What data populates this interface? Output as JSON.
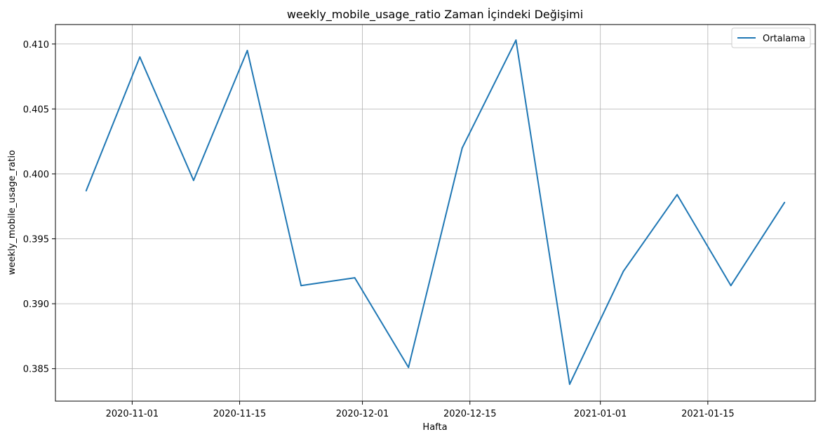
{
  "chart_data": {
    "type": "line",
    "title": "weekly_mobile_usage_ratio Zaman İçindeki Değişimi",
    "xlabel": "Hafta",
    "ylabel": "weekly_mobile_usage_ratio",
    "x_axis": {
      "type": "date",
      "range": [
        "2020-10-22",
        "2021-01-29"
      ],
      "ticks": [
        "2020-11-01",
        "2020-11-15",
        "2020-12-01",
        "2020-12-15",
        "2021-01-01",
        "2021-01-15"
      ]
    },
    "y_axis": {
      "range": [
        0.3825,
        0.4115
      ],
      "ticks": [
        0.385,
        0.39,
        0.395,
        0.4,
        0.405,
        0.41
      ],
      "tick_labels": [
        "0.385",
        "0.390",
        "0.395",
        "0.400",
        "0.405",
        "0.410"
      ]
    },
    "grid": true,
    "legend_position": "top-right",
    "series": [
      {
        "name": "Ortalama",
        "color": "#1f77b4",
        "x": [
          "2020-10-26",
          "2020-11-02",
          "2020-11-09",
          "2020-11-16",
          "2020-11-23",
          "2020-11-30",
          "2020-12-07",
          "2020-12-14",
          "2020-12-21",
          "2020-12-28",
          "2021-01-04",
          "2021-01-11",
          "2021-01-18",
          "2021-01-25"
        ],
        "values": [
          0.3987,
          0.409,
          0.3995,
          0.4095,
          0.3914,
          0.392,
          0.3851,
          0.402,
          0.4103,
          0.3838,
          0.3925,
          0.3984,
          0.3914,
          0.3978
        ]
      }
    ]
  }
}
